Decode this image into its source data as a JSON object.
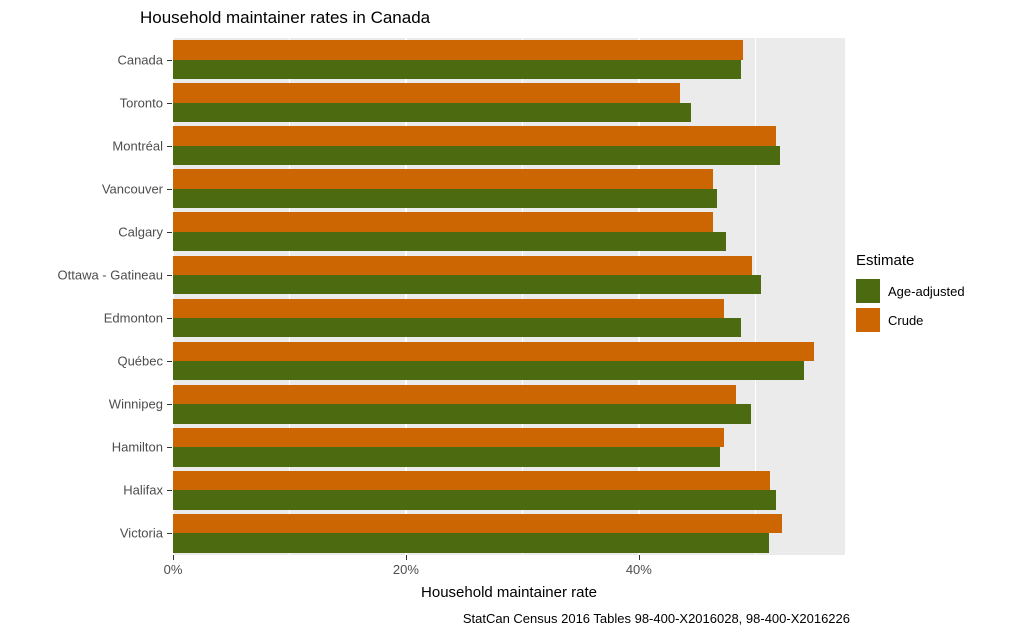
{
  "title": "Household maintainer rates in Canada",
  "caption": "StatCan Census 2016 Tables 98-400-X2016028, 98-400-X2016226",
  "chart_data": {
    "type": "bar",
    "orientation": "horizontal",
    "title": "Household maintainer rates in Canada",
    "xlabel": "Household maintainer rate",
    "categories": [
      "Canada",
      "Toronto",
      "Montréal",
      "Vancouver",
      "Calgary",
      "Ottawa - Gatineau",
      "Edmonton",
      "Québec",
      "Winnipeg",
      "Hamilton",
      "Halifax",
      "Victoria"
    ],
    "series": [
      {
        "name": "Crude",
        "color": "#CC6602",
        "values": [
          48.9,
          43.5,
          51.8,
          46.4,
          46.4,
          49.7,
          47.3,
          55.0,
          48.3,
          47.3,
          51.3,
          52.3
        ]
      },
      {
        "name": "Age-adjusted",
        "color": "#4C6B10",
        "values": [
          48.8,
          44.5,
          52.1,
          46.7,
          47.5,
          50.5,
          48.8,
          54.2,
          49.6,
          47.0,
          51.8,
          51.2
        ]
      }
    ],
    "legend": {
      "title": "Estimate",
      "position": "right",
      "entries": [
        "Age-adjusted",
        "Crude"
      ]
    },
    "x_ticks": {
      "major": [
        0,
        20,
        40
      ],
      "minor": [
        10,
        30,
        50
      ],
      "labels": [
        "0%",
        "20%",
        "40%"
      ]
    },
    "xlim": [
      0,
      57.7
    ],
    "panel_bg": "#EBEBEB",
    "grid_color": "#FFFFFF",
    "grid": "on"
  }
}
